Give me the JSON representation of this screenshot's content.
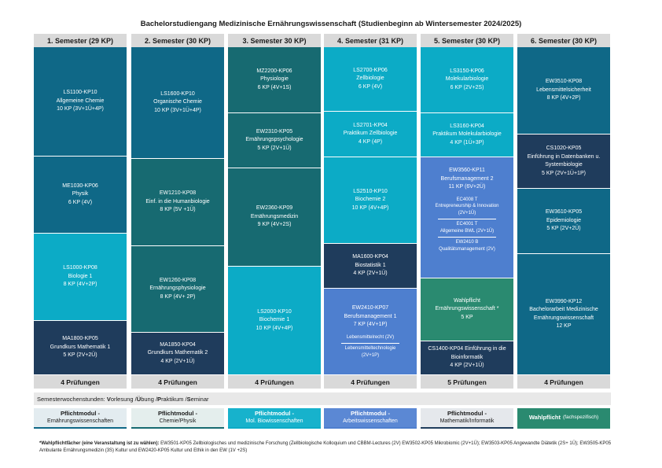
{
  "title": "Bachelorstudiengang Medizinische Ernährungswissenschaft (Studienbeginn ab Wintersemester 2024/2025)",
  "semesters": [
    "1. Semester (29 KP)",
    "2. Semester (30 KP)",
    "3. Semester 30 KP)",
    "4. Semester (31 KP)",
    "5. Semester (30 KP)",
    "6. Semester (30 KP)"
  ],
  "columns": [
    [
      {
        "code": "LS1100-KP10",
        "name": "Allgemeine Chemie",
        "kp": "10 KP (3V+1Ü+4P)"
      },
      {
        "code": "ME1030-KP06",
        "name": "Physik",
        "kp": "6 KP (4V)"
      },
      {
        "code": "LS1000-KP08",
        "name": "Biologie 1",
        "kp": "8 KP (4V+2P)"
      },
      {
        "code": "MA1800-KP05",
        "name": "Grundkurs Mathematik 1",
        "kp": "5 KP (2V+2Ü)"
      }
    ],
    [
      {
        "code": "LS1600-KP10",
        "name": "Organische Chemie",
        "kp": "10 KP (3V+1Ü+4P)"
      },
      {
        "code": "EW1210-KP08",
        "name": "Einf. in die Humanbiologie",
        "kp": "8 KP (5V +1Ü)"
      },
      {
        "code": "EW1260-KP08",
        "name": "Ernährungsphysiologie",
        "kp": "8 KP (4V+ 2P)"
      },
      {
        "code": "MA1850-KP04",
        "name": "Grundkurs Mathematik 2",
        "kp": "4 KP (2V+1Ü)"
      }
    ],
    [
      {
        "code": "MZ2200-KP06",
        "name": "Physiologie",
        "kp": "6 KP (4V+1S)"
      },
      {
        "code": "EW2310-KP05",
        "name": "Ernährungspsychologie",
        "kp": "5 KP (2V+1Ü)"
      },
      {
        "code": "EW2360-KP09",
        "name": "Ernährungsmedizin",
        "kp": "9 KP (4V+2S)"
      },
      {
        "code": "LS2000-KP10",
        "name": "Biochemie 1",
        "kp": "10 KP (4V+4P)"
      }
    ],
    [
      {
        "code": "LS2700-KP06",
        "name": "Zellbiologie",
        "kp": "6 KP (4V)"
      },
      {
        "code": "LS2701-KP04",
        "name": "Praktikum Zellbiologie",
        "kp": "4 KP (4P)"
      },
      {
        "code": "LS2510-KP10",
        "name": "Biochemie 2",
        "kp": "10 KP (4V+4P)"
      },
      {
        "code": "MA1600-KP04",
        "name": "Biostatistik 1",
        "kp": "4 KP (2V+1Ü)"
      },
      {
        "code": "EW2410-KP07",
        "name": "Berufsmanagement 1",
        "kp": "7 KP (4V+1P)",
        "sub1": "Lebensmittelrecht (2V)",
        "sub2a": "Lebensmitteltechnologie",
        "sub2b": "(2V+1P)"
      }
    ],
    [
      {
        "code": "LS3150-KP06",
        "name": "Molekularbiologie",
        "kp": "6 KP (2V+2S)"
      },
      {
        "code": "LS3160-KP04",
        "name": "Praktikum Molekularbiologie",
        "kp": "4 KP (1Ü+3P)"
      },
      {
        "code": "EW3560-KP11",
        "name": "Berufsmanagement 2",
        "kp": "11 KP (6V+2Ü)",
        "s1a": "EC4008 T",
        "s1b": "Entrepreneurship & Innovation",
        "s1c": "(2V+1Ü)",
        "s2a": "EC4001 T",
        "s2b": "Allgemeine BWL (2V+1Ü)",
        "s3a": "EW2410 B",
        "s3b": "Qualitätsmanagement (2V)"
      },
      {
        "code": "Wahlpflicht",
        "name": "Ernährungswissenschaft *",
        "kp": "5 KP"
      },
      {
        "code": "CS1400-KP04 Einführung in die",
        "name": "Bioinformatik",
        "kp": "4 KP (2V+1Ü)"
      }
    ],
    [
      {
        "code": "EW3510-KP08",
        "name": "Lebensmittelsicherheit",
        "kp": "8 KP (4V+2P)"
      },
      {
        "code": "CS1020-KP05",
        "name": "Einführung in Datenbanken u.",
        "name2": "Systembiologie",
        "kp": "5 KP (2V+1Ü+1P)"
      },
      {
        "code": "EW3610-KP05",
        "name": "Epidemiologie",
        "kp": "5 KP (2V+2Ü)"
      },
      {
        "code": "EW3990-KP12",
        "name": "Bachelorarbeit Medizinische",
        "name2": "Ernährungswissenschaft",
        "kp": "12 KP"
      }
    ]
  ],
  "exams": [
    "4 Prüfungen",
    "4 Prüfungen",
    "4 Prüfungen",
    "4 Prüfungen",
    "5 Prüfungen",
    "4 Prüfungen"
  ],
  "sws": {
    "prefix": "Semesterwochenstunden: ",
    "v": "V",
    "v_rest": "orlesung / ",
    "u": "Ü",
    "u_rest": "bung / ",
    "p": "P",
    "p_rest": "raktikum / ",
    "s": "S",
    "s_rest": "eminar"
  },
  "legend": [
    {
      "l1": "Pflichtmodul -",
      "l2": "Ernährungswissenschaften",
      "color": "#0f6887"
    },
    {
      "l1": "Pflichtmodul -",
      "l2": "Chemie/Physik",
      "color": "#176a71"
    },
    {
      "l1": "Pflichtmodul -",
      "l2": "Mol. Biowissenschaften",
      "color": "#0cabc6"
    },
    {
      "l1": "Pflichtmodul -",
      "l2": "Arbeitswissenschaften",
      "color": "#4e7fcf"
    },
    {
      "l1": "Pflichtmodul -",
      "l2": "Mathematik/Informatik",
      "color": "#1f3c5c"
    },
    {
      "l1": "Wahlpflicht",
      "l2": "(fachspezifisch)",
      "color": "#2a8a70"
    }
  ],
  "footnote": {
    "bold": "*Wahlpflichtfächer (eine Veranstaltung ist zu wählen):",
    "text": " EW3501-KP05 Zellbiologisches und medizinische Forschung (Zellbiologische Kolloquium und CBBM-Lectures (2V) EW3502-KP05 Mikrobiomic (2V+1Ü); EW3503-KP05 Angewandte Diätetik (2S+ 1Ü); EW3505-KP05 Ambulante Ernährungsmedizin (3S) Kultur und EW2420-KP05 Kultur und Ethik in den EW (1V +2S)"
  }
}
